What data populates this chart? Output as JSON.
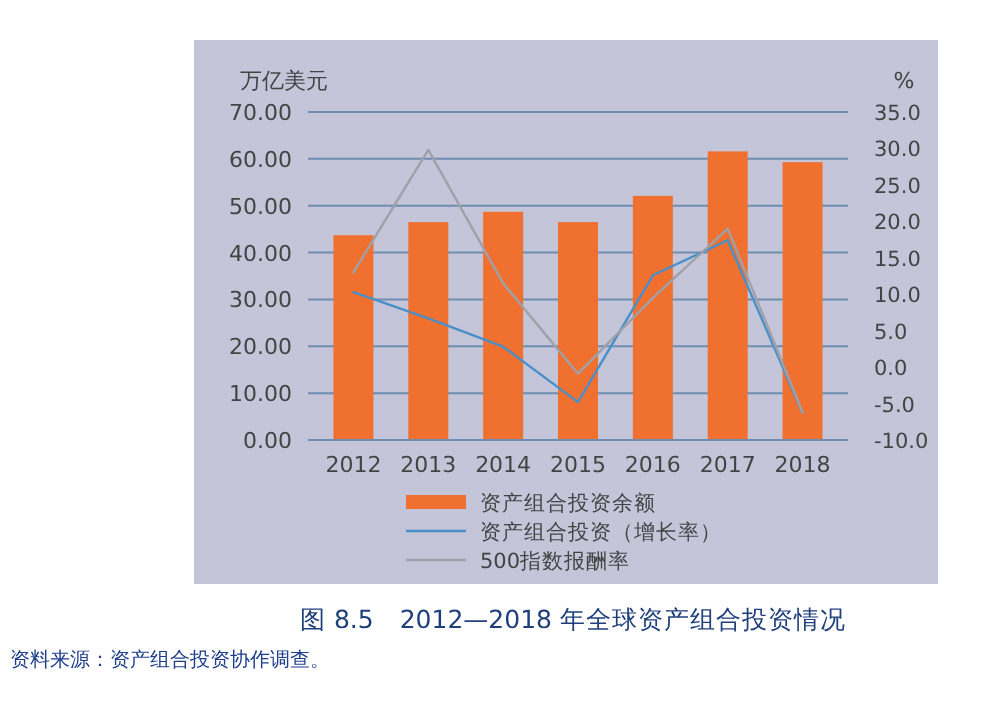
{
  "chart_data": {
    "type": "bar",
    "title": "图 8.5　2012—2018 年全球资产组合投资情况",
    "ylabel": "万亿美元",
    "y2label": "%",
    "categories": [
      "2012",
      "2013",
      "2014",
      "2015",
      "2016",
      "2017",
      "2018"
    ],
    "series": [
      {
        "name": "资产组合投资余额",
        "color": "#f07030",
        "values": [
          43.7,
          46.5,
          48.7,
          46.5,
          52.1,
          61.6,
          59.3
        ]
      },
      {
        "name": "资产组合投资（增长率）",
        "type": "line",
        "axis": "y2",
        "color": "#4a90c8",
        "values": [
          10.3,
          6.7,
          2.8,
          -4.8,
          12.6,
          17.4,
          -6.3
        ]
      },
      {
        "name": "500指数报酬率",
        "type": "line",
        "axis": "y2",
        "color": "#a0a0a8",
        "values": [
          13.0,
          29.8,
          11.5,
          -0.9,
          9.5,
          19.0,
          -6.2
        ]
      }
    ],
    "ylim": [
      0,
      70
    ],
    "yticks": [
      {
        "value": 0,
        "label": "0.00"
      },
      {
        "value": 10,
        "label": "10.00"
      },
      {
        "value": 20,
        "label": "20.00"
      },
      {
        "value": 30,
        "label": "30.00"
      },
      {
        "value": 40,
        "label": "40.00"
      },
      {
        "value": 50,
        "label": "50.00"
      },
      {
        "value": 60,
        "label": "60.00"
      },
      {
        "value": 70,
        "label": "70.00"
      }
    ],
    "y2lim": [
      -10,
      35
    ],
    "y2ticks": [
      {
        "value": -10,
        "label": "-10.0"
      },
      {
        "value": -5,
        "label": "-5.0"
      },
      {
        "value": 0,
        "label": "0.0"
      },
      {
        "value": 5,
        "label": "5.0"
      },
      {
        "value": 10,
        "label": "10.0"
      },
      {
        "value": 15,
        "label": "15.0"
      },
      {
        "value": 20,
        "label": "20.0"
      },
      {
        "value": 25,
        "label": "25.0"
      },
      {
        "value": 30,
        "label": "30.0"
      },
      {
        "value": 35,
        "label": "35.0"
      }
    ],
    "grid": "y",
    "legend": "bottom",
    "marker": "none",
    "line_style": "solid",
    "annotations": [
      "资料来源：资产组合投资协作调查。"
    ]
  }
}
